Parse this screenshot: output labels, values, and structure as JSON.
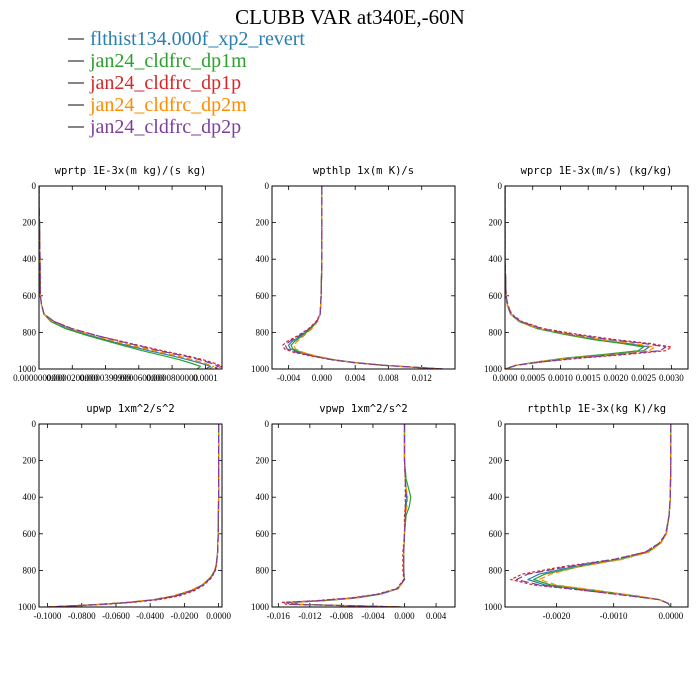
{
  "title": "CLUBB VAR at340E,-60N",
  "colors": {
    "legend_line": "#333333"
  },
  "legend": [
    {
      "name": "flthist134.000f_xp2_revert",
      "color": "#2a7fb0",
      "dash": ""
    },
    {
      "name": "jan24_cldfrc_dp1m",
      "color": "#2ca02c",
      "dash": ""
    },
    {
      "name": "jan24_cldfrc_dp1p",
      "color": "#d62728",
      "dash": "3,2"
    },
    {
      "name": "jan24_cldfrc_dp2m",
      "color": "#ff8c00",
      "dash": "6,3"
    },
    {
      "name": "jan24_cldfrc_dp2p",
      "color": "#7b3f9e",
      "dash": "8,3"
    }
  ],
  "chart_data": [
    {
      "type": "line",
      "title": "wprtp  1E-3x(m kg)/(s kg)",
      "ylim": [
        0,
        1000
      ],
      "yticks": [
        0,
        200,
        400,
        600,
        800,
        1000
      ],
      "yinverted": true,
      "xlim": [
        0,
        0.00011
      ],
      "xticks": [
        0,
        2e-05,
        4e-05,
        6e-05,
        8e-05,
        0.0001
      ],
      "xticklabels": [
        "0.0000000000",
        "0.0000200000",
        "0.0000399999",
        "0.0000600000",
        "0.0000800000",
        "0.0001"
      ],
      "y": [
        0,
        100,
        200,
        300,
        400,
        500,
        600,
        650,
        700,
        740,
        780,
        820,
        860,
        900,
        930,
        950,
        970,
        985,
        1000
      ],
      "series": [
        {
          "values": [
            0,
            0,
            3e-07,
            5e-07,
            6e-07,
            7e-07,
            8e-07,
            1.5e-06,
            3e-06,
            8e-06,
            1.8e-05,
            3.2e-05,
            4.8e-05,
            6.6e-05,
            8.1e-05,
            9e-05,
            9.8e-05,
            0.000103,
            0.0001
          ]
        },
        {
          "values": [
            0,
            0,
            3e-07,
            5e-07,
            6e-07,
            7e-07,
            8e-07,
            1.5e-06,
            3e-06,
            7e-06,
            1.6e-05,
            3e-05,
            4.6e-05,
            6.2e-05,
            7.6e-05,
            8.5e-05,
            9.2e-05,
            9.7e-05,
            9.5e-05
          ]
        },
        {
          "values": [
            0,
            0,
            3e-07,
            5e-07,
            6e-07,
            7e-07,
            8e-07,
            1.6e-06,
            3e-06,
            9e-06,
            2e-05,
            3.6e-05,
            5.5e-05,
            7.4e-05,
            9e-05,
            9.9e-05,
            0.000106,
            0.00011,
            0.000106
          ]
        },
        {
          "values": [
            0,
            0,
            3e-07,
            5e-07,
            6e-07,
            7e-07,
            8e-07,
            1.5e-06,
            3e-06,
            8e-06,
            1.9e-05,
            3.4e-05,
            5.1e-05,
            6.9e-05,
            8.4e-05,
            9.3e-05,
            0.0001,
            0.000105,
            0.000102
          ]
        },
        {
          "values": [
            0,
            0,
            3e-07,
            5e-07,
            6e-07,
            7e-07,
            8e-07,
            1.6e-06,
            3e-06,
            9e-06,
            2e-05,
            3.6e-05,
            5.4e-05,
            7.2e-05,
            8.8e-05,
            9.7e-05,
            0.000104,
            0.000108,
            0.000104
          ]
        }
      ]
    },
    {
      "type": "line",
      "title": "wpthlp  1x(m K)/s",
      "ylim": [
        0,
        1000
      ],
      "yticks": [
        0,
        200,
        400,
        600,
        800,
        1000
      ],
      "yinverted": true,
      "xlim": [
        -0.006,
        0.016
      ],
      "xticks": [
        -0.004,
        0,
        0.004,
        0.008,
        0.012
      ],
      "xticklabels": [
        "-0.004",
        "0.000",
        "0.004",
        "0.008",
        "0.012"
      ],
      "y": [
        0,
        200,
        400,
        600,
        700,
        740,
        780,
        820,
        850,
        870,
        890,
        910,
        930,
        950,
        965,
        980,
        990,
        1000
      ],
      "series": [
        {
          "values": [
            0,
            0,
            0,
            -0.0001,
            -0.0002,
            -0.0006,
            -0.0014,
            -0.0026,
            -0.0036,
            -0.004,
            -0.0038,
            -0.0026,
            -0.0008,
            0.0015,
            0.004,
            0.0075,
            0.011,
            0.0145
          ]
        },
        {
          "values": [
            0,
            0,
            0,
            -0.0001,
            -0.0002,
            -0.0006,
            -0.0013,
            -0.0024,
            -0.0033,
            -0.0037,
            -0.0035,
            -0.0024,
            -0.0007,
            0.0015,
            0.004,
            0.0075,
            0.011,
            0.0145
          ]
        },
        {
          "values": [
            0,
            0,
            0,
            -0.0001,
            -0.0002,
            -0.0007,
            -0.0016,
            -0.003,
            -0.0042,
            -0.0047,
            -0.0045,
            -0.0033,
            -0.0012,
            0.0012,
            0.0038,
            0.0073,
            0.011,
            0.0145
          ]
        },
        {
          "values": [
            0,
            0,
            0,
            -0.0001,
            -0.0002,
            -0.0005,
            -0.0012,
            -0.0022,
            -0.003,
            -0.0034,
            -0.0032,
            -0.0022,
            -0.0006,
            0.0016,
            0.004,
            0.0075,
            0.011,
            0.0145
          ]
        },
        {
          "values": [
            0,
            0,
            0,
            -0.0001,
            -0.0002,
            -0.0006,
            -0.0015,
            -0.0028,
            -0.0039,
            -0.0044,
            -0.0042,
            -0.003,
            -0.001,
            0.0013,
            0.0039,
            0.0074,
            0.011,
            0.0145
          ]
        }
      ]
    },
    {
      "type": "line",
      "title": "wprcp  1E-3x(m/s) (kg/kg)",
      "ylim": [
        0,
        1000
      ],
      "yticks": [
        0,
        200,
        400,
        600,
        800,
        1000
      ],
      "yinverted": true,
      "xlim": [
        0,
        0.0033
      ],
      "xticks": [
        0,
        0.0005,
        0.001,
        0.0015,
        0.002,
        0.0025,
        0.003
      ],
      "xticklabels": [
        "0.0000",
        "0.0005",
        "0.0010",
        "0.0015",
        "0.0020",
        "0.0025",
        "0.0030"
      ],
      "y": [
        0,
        400,
        600,
        650,
        700,
        740,
        780,
        810,
        840,
        860,
        880,
        900,
        920,
        940,
        960,
        980,
        1000
      ],
      "series": [
        {
          "values": [
            0,
            0,
            2e-05,
            4e-05,
            0.0001,
            0.00025,
            0.0006,
            0.0011,
            0.0017,
            0.0022,
            0.0026,
            0.0025,
            0.0019,
            0.0012,
            0.0006,
            0.0002,
            0
          ]
        },
        {
          "values": [
            0,
            0,
            2e-05,
            4e-05,
            0.0001,
            0.00025,
            0.00058,
            0.00105,
            0.0016,
            0.0021,
            0.0025,
            0.0024,
            0.0018,
            0.0011,
            0.0006,
            0.0002,
            0
          ]
        },
        {
          "values": [
            0,
            0,
            2e-05,
            5e-05,
            0.00012,
            0.0003,
            0.0007,
            0.0013,
            0.002,
            0.0026,
            0.003,
            0.0029,
            0.0022,
            0.0014,
            0.0007,
            0.0002,
            0
          ]
        },
        {
          "values": [
            0,
            0,
            2e-05,
            4e-05,
            0.0001,
            0.00026,
            0.0006,
            0.00115,
            0.00175,
            0.0023,
            0.0027,
            0.0026,
            0.002,
            0.0012,
            0.0006,
            0.0002,
            0
          ]
        },
        {
          "values": [
            0,
            0,
            2e-05,
            5e-05,
            0.00011,
            0.00028,
            0.00066,
            0.0012,
            0.0019,
            0.0025,
            0.0029,
            0.0028,
            0.0021,
            0.0013,
            0.0007,
            0.0002,
            0
          ]
        }
      ]
    },
    {
      "type": "line",
      "title": "upwp  1xm^2/s^2",
      "ylim": [
        0,
        1000
      ],
      "yticks": [
        0,
        200,
        400,
        600,
        800,
        1000
      ],
      "yinverted": true,
      "xlim": [
        -0.105,
        0.002
      ],
      "xticks": [
        -0.1,
        -0.08,
        -0.06,
        -0.04,
        -0.02,
        0
      ],
      "xticklabels": [
        "-0.1000",
        "-0.0800",
        "-0.0600",
        "-0.0400",
        "-0.0200",
        "0.0000"
      ],
      "y": [
        0,
        200,
        400,
        600,
        700,
        760,
        800,
        840,
        880,
        910,
        940,
        960,
        975,
        985,
        995,
        1000
      ],
      "series": [
        {
          "values": [
            0,
            0,
            0,
            -0.0002,
            -0.0006,
            -0.0012,
            -0.002,
            -0.0045,
            -0.009,
            -0.015,
            -0.025,
            -0.037,
            -0.052,
            -0.068,
            -0.088,
            -0.1
          ]
        },
        {
          "values": [
            0,
            0,
            0,
            -0.0002,
            -0.0006,
            -0.0012,
            -0.0022,
            -0.0048,
            -0.0095,
            -0.016,
            -0.026,
            -0.038,
            -0.053,
            -0.069,
            -0.089,
            -0.1
          ]
        },
        {
          "values": [
            0,
            0,
            0,
            -0.0002,
            -0.0005,
            -0.0011,
            -0.0018,
            -0.004,
            -0.0085,
            -0.014,
            -0.023,
            -0.035,
            -0.05,
            -0.066,
            -0.087,
            -0.1
          ]
        },
        {
          "values": [
            0,
            0,
            0,
            -0.0002,
            -0.0006,
            -0.0013,
            -0.0023,
            -0.005,
            -0.0098,
            -0.0165,
            -0.027,
            -0.039,
            -0.054,
            -0.07,
            -0.09,
            -0.1
          ]
        },
        {
          "values": [
            0,
            0,
            0,
            -0.0002,
            -0.0006,
            -0.0012,
            -0.0021,
            -0.0046,
            -0.0092,
            -0.0155,
            -0.0255,
            -0.0375,
            -0.0525,
            -0.0685,
            -0.0885,
            -0.1
          ]
        }
      ]
    },
    {
      "type": "line",
      "title": "vpwp  1xm^2/s^2",
      "ylim": [
        0,
        1000
      ],
      "yticks": [
        0,
        200,
        400,
        600,
        800,
        1000
      ],
      "yinverted": true,
      "xlim": [
        -0.0168,
        0.0064
      ],
      "xticks": [
        -0.016,
        -0.012,
        -0.008,
        -0.004,
        0,
        0.004
      ],
      "xticklabels": [
        "-0.016",
        "-0.012",
        "-0.008",
        "-0.004",
        "0.000",
        "0.004"
      ],
      "y": [
        0,
        200,
        300,
        350,
        400,
        450,
        500,
        600,
        700,
        800,
        850,
        900,
        930,
        950,
        965,
        975,
        985,
        1000
      ],
      "series": [
        {
          "values": [
            0,
            0,
            0.0001,
            0.0002,
            0.0003,
            0.0002,
            0.0001,
            0,
            -0.0001,
            -0.0001,
            0,
            -0.0008,
            -0.003,
            -0.006,
            -0.01,
            -0.014,
            -0.0135,
            -0.0005
          ]
        },
        {
          "values": [
            0,
            0,
            0.0002,
            0.0005,
            0.0008,
            0.0006,
            0.0002,
            0,
            -0.0001,
            -0.0001,
            0,
            -0.0009,
            -0.0032,
            -0.0063,
            -0.0105,
            -0.0145,
            -0.014,
            -0.0005
          ]
        },
        {
          "values": [
            0,
            0,
            0.0001,
            0.0001,
            0.0001,
            0.0001,
            0,
            0,
            -0.0002,
            -0.0002,
            -0.0001,
            -0.001,
            -0.0035,
            -0.0068,
            -0.0112,
            -0.0155,
            -0.015,
            -0.0005
          ]
        },
        {
          "values": [
            0,
            0,
            0.0001,
            0.0002,
            0.0004,
            0.0003,
            0.0001,
            0,
            -0.0001,
            -0.0001,
            0,
            -0.0008,
            -0.0031,
            -0.0061,
            -0.0102,
            -0.0142,
            -0.0138,
            -0.0005
          ]
        },
        {
          "values": [
            0,
            0,
            0.0001,
            0.0001,
            0.0002,
            0.0001,
            0.0001,
            0,
            -0.0001,
            -0.0001,
            0,
            -0.0009,
            -0.0033,
            -0.0065,
            -0.0108,
            -0.015,
            -0.0145,
            -0.0005
          ]
        }
      ]
    },
    {
      "type": "line",
      "title": "rtpthlp  1E-3x(kg K)/kg",
      "ylim": [
        0,
        1000
      ],
      "yticks": [
        0,
        200,
        400,
        600,
        800,
        1000
      ],
      "yinverted": true,
      "xlim": [
        -0.0029,
        0.0003
      ],
      "xticks": [
        -0.002,
        -0.001,
        0
      ],
      "xticklabels": [
        "-0.0020",
        "-0.0010",
        "0.0000"
      ],
      "y": [
        0,
        200,
        400,
        500,
        600,
        650,
        700,
        740,
        780,
        820,
        850,
        880,
        910,
        940,
        960,
        980,
        1000
      ],
      "series": [
        {
          "values": [
            0,
            0,
            -1e-05,
            -3e-05,
            -8e-05,
            -0.00018,
            -0.0004,
            -0.0009,
            -0.0017,
            -0.0023,
            -0.0025,
            -0.0022,
            -0.0014,
            -0.0006,
            -0.0002,
            -5e-05,
            0
          ]
        },
        {
          "values": [
            0,
            0,
            -1e-05,
            -3e-05,
            -8e-05,
            -0.00018,
            -0.0004,
            -0.0009,
            -0.0016,
            -0.0022,
            -0.0024,
            -0.0021,
            -0.0013,
            -0.0006,
            -0.0002,
            -5e-05,
            0
          ]
        },
        {
          "values": [
            0,
            0,
            -1e-05,
            -3e-05,
            -9e-05,
            -0.0002,
            -0.00045,
            -0.001,
            -0.0019,
            -0.0026,
            -0.0028,
            -0.0024,
            -0.0015,
            -0.0007,
            -0.0002,
            -5e-05,
            0
          ]
        },
        {
          "values": [
            0,
            0,
            -1e-05,
            -3e-05,
            -8e-05,
            -0.00017,
            -0.00038,
            -0.00085,
            -0.0016,
            -0.0021,
            -0.0023,
            -0.002,
            -0.0013,
            -0.0006,
            -0.0002,
            -5e-05,
            0
          ]
        },
        {
          "values": [
            0,
            0,
            -1e-05,
            -3e-05,
            -9e-05,
            -0.0002,
            -0.00044,
            -0.001,
            -0.0018,
            -0.0025,
            -0.0027,
            -0.0023,
            -0.0015,
            -0.0007,
            -0.0002,
            -5e-05,
            0
          ]
        }
      ]
    }
  ]
}
